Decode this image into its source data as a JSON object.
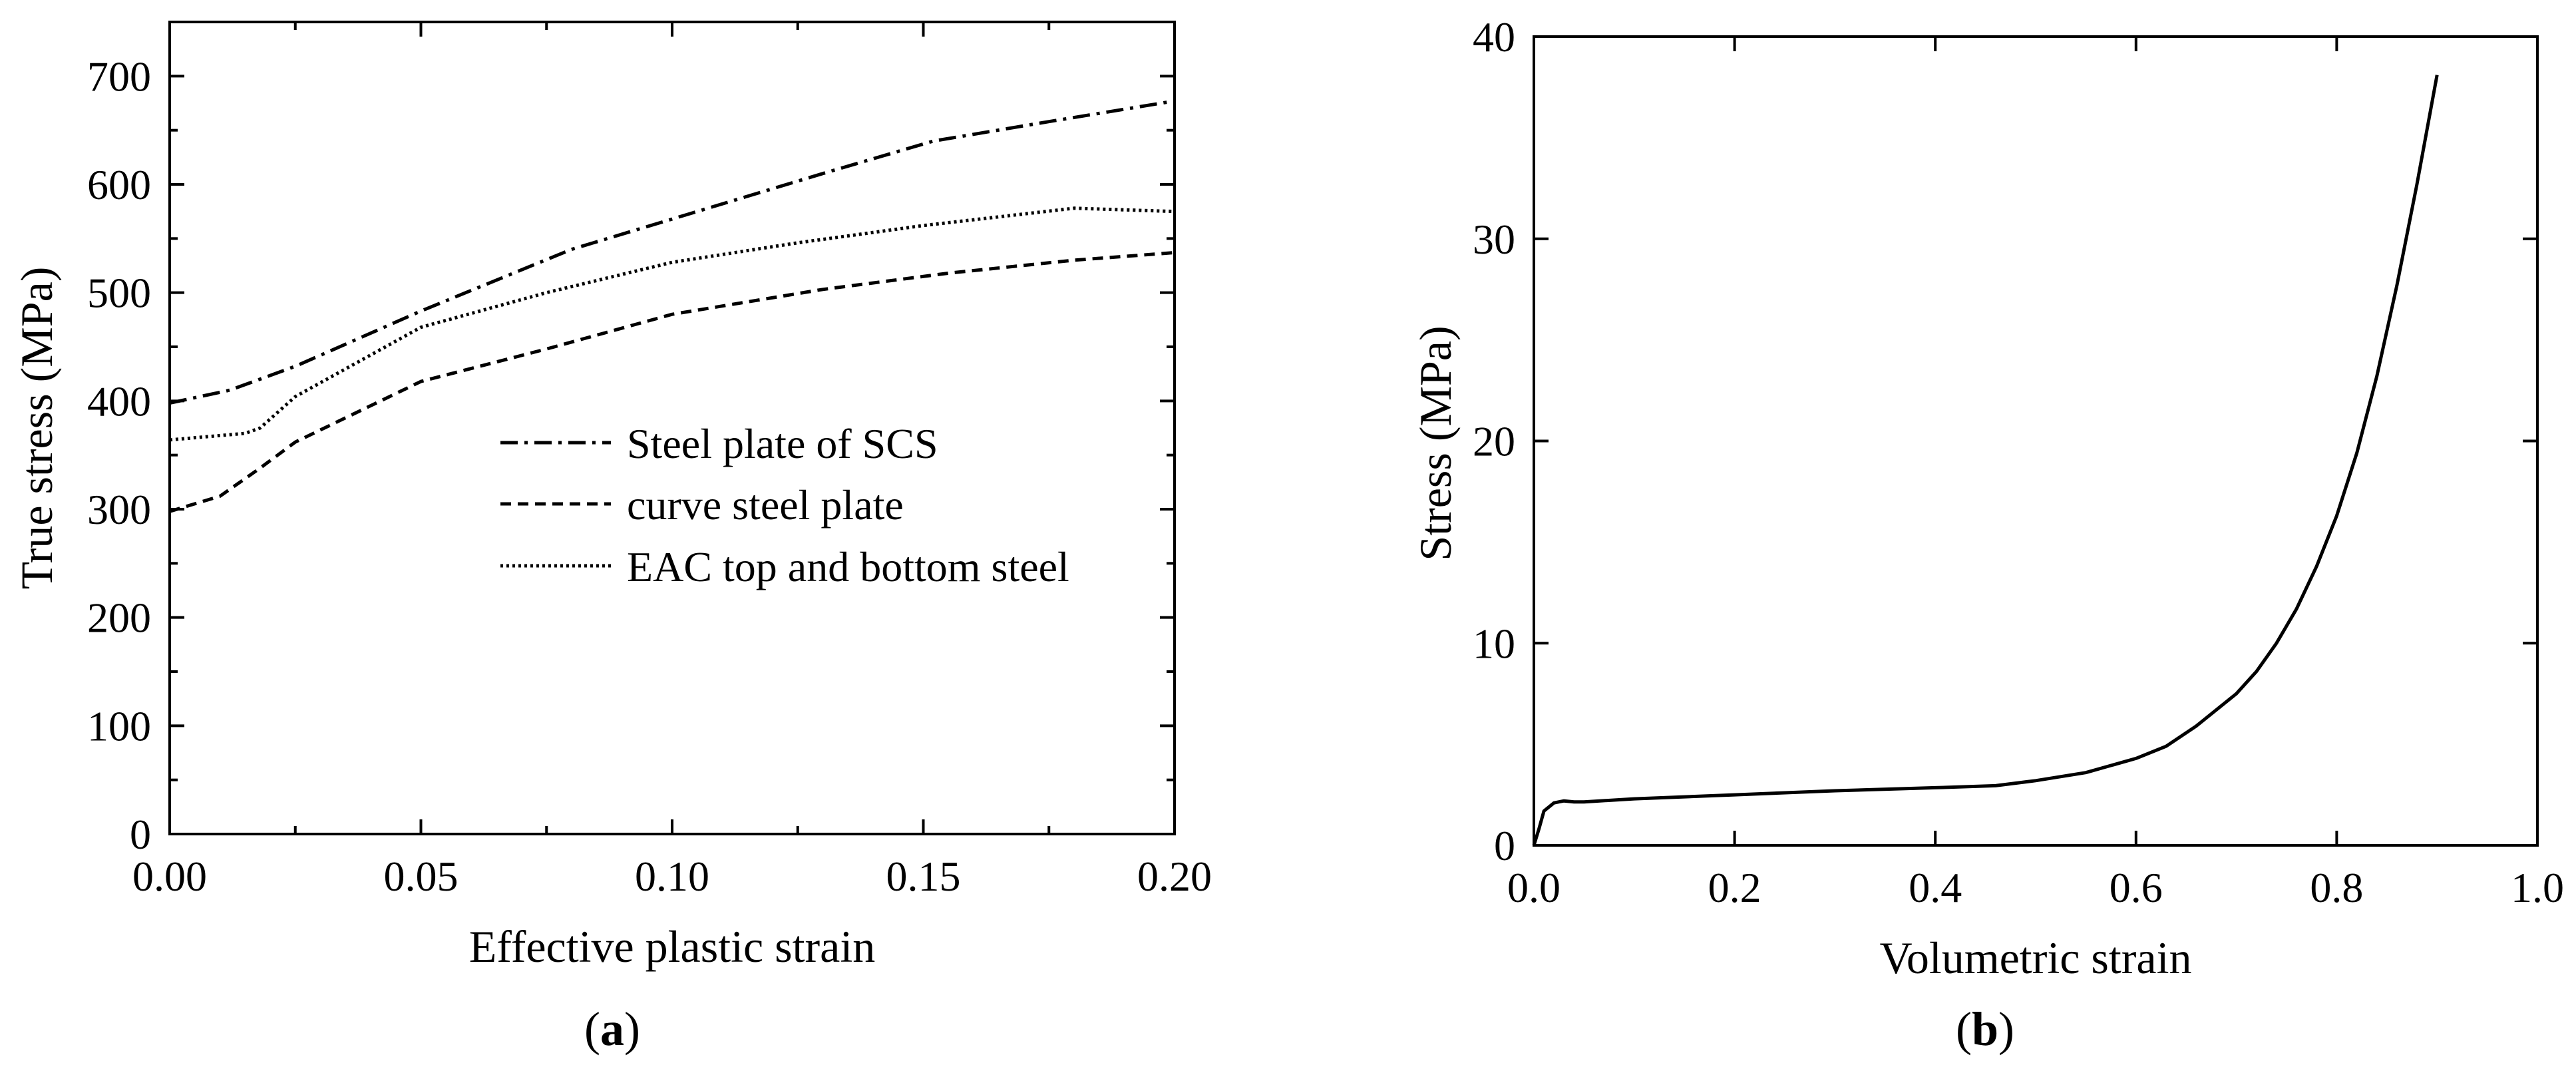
{
  "chart_data": [
    {
      "type": "line",
      "panel": "a",
      "panel_label": "a",
      "title": "",
      "xlabel": "Effective plastic strain",
      "ylabel": "True stress (MPa)",
      "xlim": [
        0.0,
        0.2
      ],
      "ylim": [
        0,
        750
      ],
      "x_ticks": [
        0.0,
        0.05,
        0.1,
        0.15,
        0.2
      ],
      "x_tick_labels": [
        "0.00",
        "0.05",
        "0.10",
        "0.15",
        "0.20"
      ],
      "y_ticks": [
        0,
        100,
        200,
        300,
        400,
        500,
        600,
        700
      ],
      "y_tick_labels": [
        "0",
        "100",
        "200",
        "300",
        "400",
        "500",
        "600",
        "700"
      ],
      "grid": false,
      "legend_position": "center-right",
      "series": [
        {
          "name": "Steel plate of SCS",
          "style": "dashdot",
          "x": [
            0.0,
            0.012,
            0.025,
            0.05,
            0.08,
            0.1,
            0.13,
            0.152,
            0.175,
            0.2
          ],
          "y": [
            398,
            410,
            432,
            483,
            540,
            568,
            610,
            640,
            658,
            677
          ]
        },
        {
          "name": "curve steel plate",
          "style": "dashed",
          "x": [
            0.0,
            0.01,
            0.018,
            0.025,
            0.05,
            0.075,
            0.1,
            0.13,
            0.155,
            0.18,
            0.2
          ],
          "y": [
            298,
            312,
            338,
            362,
            418,
            448,
            480,
            503,
            518,
            530,
            537
          ]
        },
        {
          "name": "EAC top and bottom steel",
          "style": "dotted",
          "x": [
            0.0,
            0.015,
            0.018,
            0.025,
            0.05,
            0.075,
            0.1,
            0.125,
            0.15,
            0.18,
            0.2
          ],
          "y": [
            364,
            370,
            375,
            404,
            468,
            500,
            528,
            546,
            562,
            578,
            575
          ]
        }
      ]
    },
    {
      "type": "line",
      "panel": "b",
      "panel_label": "b",
      "title": "",
      "xlabel": "Volumetric strain",
      "ylabel": "Stress (MPa)",
      "xlim": [
        0.0,
        1.0
      ],
      "ylim": [
        0,
        40
      ],
      "x_ticks": [
        0.0,
        0.2,
        0.4,
        0.6,
        0.8,
        1.0
      ],
      "x_tick_labels": [
        "0.0",
        "0.2",
        "0.4",
        "0.6",
        "0.8",
        "1.0"
      ],
      "y_ticks": [
        0,
        10,
        20,
        30,
        40
      ],
      "y_tick_labels": [
        "0",
        "10",
        "20",
        "30",
        "40"
      ],
      "grid": false,
      "series": [
        {
          "name": "",
          "style": "solid",
          "x": [
            0.0,
            0.005,
            0.01,
            0.02,
            0.03,
            0.04,
            0.05,
            0.1,
            0.2,
            0.3,
            0.4,
            0.46,
            0.5,
            0.55,
            0.6,
            0.63,
            0.66,
            0.7,
            0.72,
            0.74,
            0.76,
            0.78,
            0.8,
            0.82,
            0.84,
            0.86,
            0.88,
            0.9
          ],
          "y": [
            0.0,
            0.8,
            1.7,
            2.1,
            2.2,
            2.15,
            2.15,
            2.3,
            2.5,
            2.7,
            2.85,
            2.95,
            3.2,
            3.6,
            4.3,
            4.9,
            5.9,
            7.5,
            8.6,
            10.0,
            11.7,
            13.8,
            16.3,
            19.4,
            23.2,
            27.7,
            32.7,
            38.1
          ]
        }
      ]
    }
  ]
}
